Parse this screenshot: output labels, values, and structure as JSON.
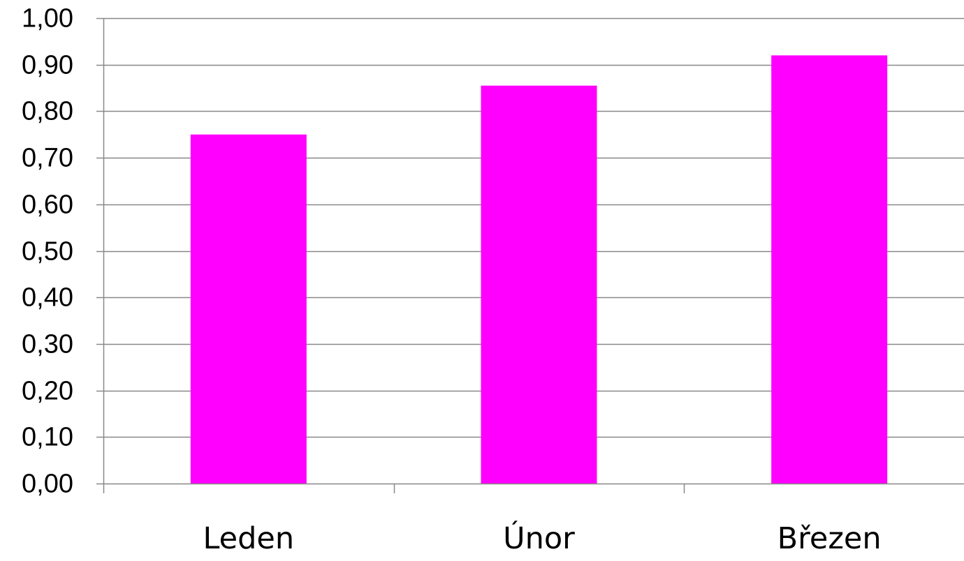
{
  "chart_data": {
    "type": "bar",
    "title": "",
    "xlabel": "",
    "ylabel": "",
    "categories": [
      "Leden",
      "Únor",
      "Březen"
    ],
    "values": [
      0.75,
      0.855,
      0.92
    ],
    "ylim": [
      0,
      1.0
    ],
    "yticks": [
      "0,00",
      "0,10",
      "0,20",
      "0,30",
      "0,40",
      "0,50",
      "0,60",
      "0,70",
      "0,80",
      "0,90",
      "1,00"
    ],
    "grid": true,
    "legend": "none",
    "bar_color": "#ff00ff",
    "grid_color": "#888888",
    "axis_color": "#888888"
  }
}
